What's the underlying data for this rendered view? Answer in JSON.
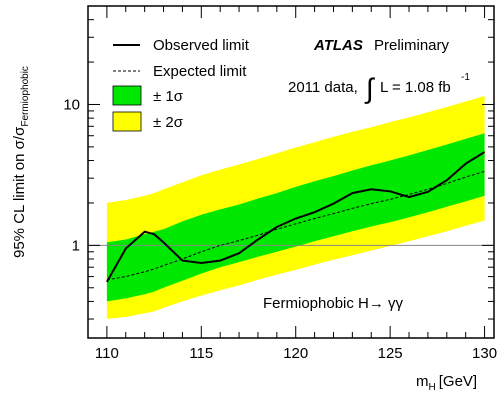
{
  "chart_data": {
    "type": "line",
    "xlabel_main": "m",
    "xlabel_sub": "H",
    "xlabel_unit": "[GeV]",
    "ylabel_main": "95% CL limit on σ/σ",
    "ylabel_sub": "Fermiophobic",
    "xlim": [
      109,
      130.5
    ],
    "ylim": [
      0.22,
      50
    ],
    "yscale": "log",
    "x_ticks": [
      110,
      115,
      120,
      125,
      130
    ],
    "x_tick_labels": [
      "110",
      "115",
      "120",
      "125",
      "130"
    ],
    "y_ticks": [
      1,
      10
    ],
    "y_tick_labels": [
      "1",
      "10"
    ],
    "reference_line": 1,
    "experiment": "ATLAS",
    "status": "Preliminary",
    "dataset_label": "2011 data,",
    "lumi_integral": "∫",
    "lumi_text": "L = 1.08 fb",
    "lumi_exponent": "-1",
    "annotation": "Fermiophobic H→ γγ",
    "legend": [
      {
        "label": "Observed limit",
        "style": "solid-line"
      },
      {
        "label": "Expected limit",
        "style": "dashed-line"
      },
      {
        "label": "± 1σ",
        "style": "green-box"
      },
      {
        "label": "± 2σ",
        "style": "yellow-box"
      }
    ],
    "colors": {
      "band_1sigma": "#00e800",
      "band_2sigma": "#ffff00",
      "observed": "#000000",
      "expected": "#000000",
      "reference": "#888888"
    },
    "x": [
      110,
      111,
      112,
      112.5,
      113,
      114,
      115,
      116,
      117,
      118,
      119,
      120,
      121,
      122,
      123,
      124,
      125,
      126,
      127,
      128,
      129,
      130
    ],
    "series": [
      {
        "name": "Observed limit",
        "values": [
          0.55,
          0.95,
          1.25,
          1.2,
          1.05,
          0.78,
          0.75,
          0.78,
          0.88,
          1.1,
          1.35,
          1.55,
          1.72,
          1.98,
          2.35,
          2.5,
          2.42,
          2.2,
          2.4,
          2.9,
          3.8,
          4.6
        ]
      },
      {
        "name": "Expected limit",
        "values": [
          0.57,
          0.6,
          0.65,
          0.68,
          0.72,
          0.8,
          0.9,
          1.0,
          1.08,
          1.18,
          1.3,
          1.42,
          1.55,
          1.68,
          1.83,
          1.98,
          2.12,
          2.3,
          2.5,
          2.75,
          3.05,
          3.35
        ]
      },
      {
        "name": "+2σ",
        "values": [
          2.0,
          2.1,
          2.25,
          2.35,
          2.5,
          2.8,
          3.15,
          3.45,
          3.75,
          4.1,
          4.5,
          4.95,
          5.4,
          5.9,
          6.4,
          6.9,
          7.5,
          8.1,
          8.8,
          9.6,
          10.5,
          11.5
        ]
      },
      {
        "name": "+1σ",
        "values": [
          1.05,
          1.1,
          1.2,
          1.25,
          1.3,
          1.48,
          1.65,
          1.8,
          1.95,
          2.15,
          2.35,
          2.6,
          2.85,
          3.1,
          3.4,
          3.7,
          4.0,
          4.35,
          4.75,
          5.2,
          5.7,
          6.25
        ]
      },
      {
        "name": "-1σ",
        "values": [
          0.4,
          0.42,
          0.45,
          0.47,
          0.5,
          0.56,
          0.63,
          0.7,
          0.76,
          0.83,
          0.9,
          0.98,
          1.07,
          1.16,
          1.26,
          1.36,
          1.46,
          1.58,
          1.72,
          1.88,
          2.05,
          2.25
        ]
      },
      {
        "name": "-2σ",
        "values": [
          0.3,
          0.31,
          0.33,
          0.34,
          0.36,
          0.4,
          0.44,
          0.48,
          0.52,
          0.57,
          0.62,
          0.67,
          0.73,
          0.79,
          0.85,
          0.92,
          0.99,
          1.07,
          1.16,
          1.26,
          1.38,
          1.5
        ]
      }
    ]
  }
}
